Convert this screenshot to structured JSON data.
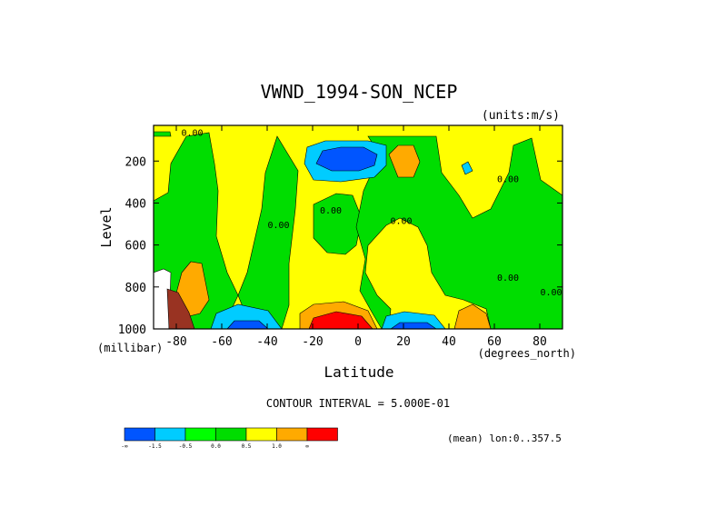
{
  "chart_data": {
    "type": "heatmap",
    "title": "VWND_1994-SON_NCEP",
    "units_note": "(units:m/s)",
    "xlabel": "Latitude",
    "ylabel": "Level",
    "x_unit_label": "(degrees_north)",
    "y_unit_label": "(millibar)",
    "xlim": [
      -90,
      90
    ],
    "ylim": [
      1000,
      30
    ],
    "x_ticks": [
      -80,
      -60,
      -40,
      -20,
      0,
      20,
      40,
      60,
      80
    ],
    "x_tick_labels": [
      "-80",
      "-60",
      "-40",
      "-20",
      "0",
      "20",
      "40",
      "60",
      "80"
    ],
    "y_ticks": [
      200,
      400,
      600,
      800,
      1000
    ],
    "y_tick_labels": [
      "200",
      "400",
      "600",
      "800",
      "1000"
    ],
    "contour_interval_text": "CONTOUR INTERVAL = 5.000E-01",
    "mean_note": "(mean) lon:0..357.5",
    "contour_labels": [
      {
        "lat": -73,
        "level": 80,
        "text": "0.00"
      },
      {
        "lat": -35,
        "level": 520,
        "text": "0.00"
      },
      {
        "lat": -12,
        "level": 450,
        "text": "0.00"
      },
      {
        "lat": 19,
        "level": 500,
        "text": "0.00"
      },
      {
        "lat": 66,
        "level": 300,
        "text": "0.00"
      },
      {
        "lat": 66,
        "level": 770,
        "text": "0.00"
      },
      {
        "lat": 85,
        "level": 840,
        "text": "0.00"
      }
    ],
    "legend": {
      "colors": [
        "#0055ff",
        "#00ccff",
        "#00ff00",
        "#00dd00",
        "#ffff00",
        "#ffaa00",
        "#ff0000"
      ],
      "labels": [
        "-∞",
        "-1.5",
        "-0.5",
        "0.0",
        "0.5",
        "1.0",
        "∞"
      ]
    }
  }
}
